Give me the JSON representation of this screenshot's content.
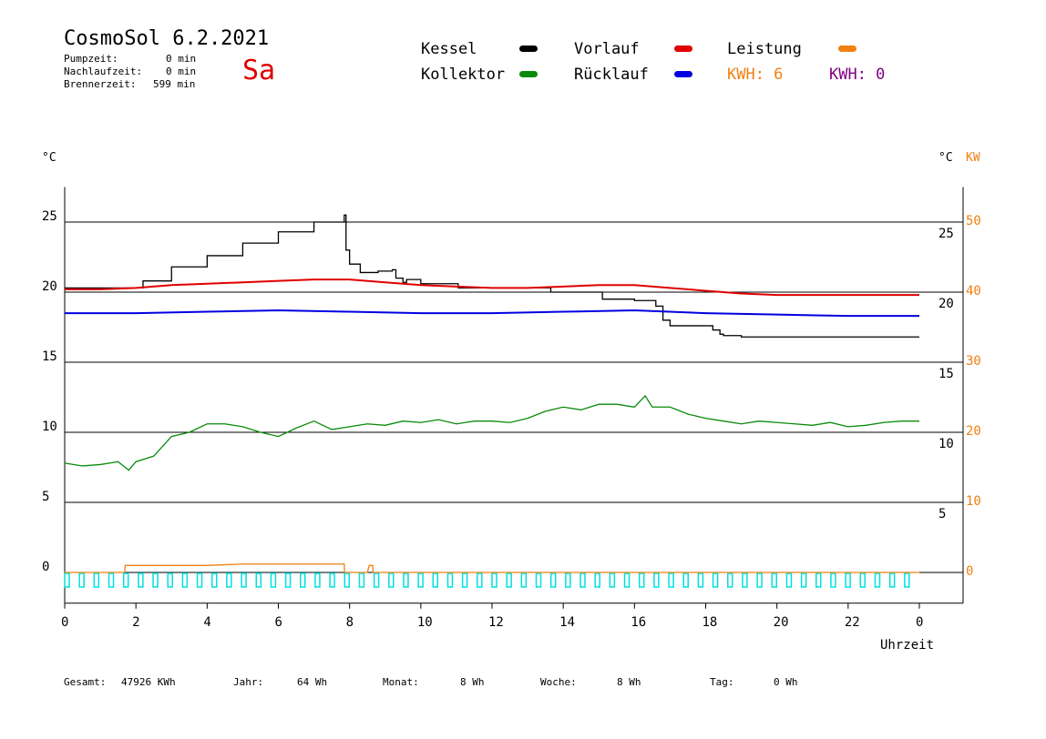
{
  "header": {
    "title": "CosmoSol 6.2.2021",
    "day": "Sa",
    "pumpzeit_label": "Pumpzeit:",
    "pumpzeit_value": "0 min",
    "nachlauf_label": "Nachlaufzeit:",
    "nachlauf_value": "0 min",
    "brenner_label": "Brennerzeit:",
    "brenner_value": "599 min"
  },
  "legend": {
    "kessel": "Kessel",
    "kollektor": "Kollektor",
    "vorlauf": "Vorlauf",
    "ruecklauf": "Rücklauf",
    "leistung": "Leistung",
    "kwh1": "KWH: 6",
    "kwh2": "KWH: 0",
    "colors": {
      "kessel": "#000000",
      "kollektor": "#0a8a0a",
      "vorlauf": "#e00000",
      "ruecklauf": "#0000e0",
      "leistung": "#f08010",
      "kwh2": "#800080",
      "bars": "#00e0e0"
    }
  },
  "footer": {
    "gesamt_label": "Gesamt:",
    "gesamt_value": "47926 KWh",
    "jahr_label": "Jahr:",
    "jahr_value": "64 Wh",
    "monat_label": "Monat:",
    "monat_value": "8 Wh",
    "woche_label": "Woche:",
    "woche_value": "8 Wh",
    "tag_label": "Tag:",
    "tag_value": "0 Wh"
  },
  "chart_data": {
    "type": "line",
    "xlabel": "Uhrzeit",
    "y_left_unit": "°C",
    "y_right_unit": "°C",
    "y_right2_unit": "KW",
    "x_ticks": [
      "0",
      "2",
      "4",
      "6",
      "8",
      "10",
      "12",
      "14",
      "16",
      "18",
      "20",
      "22",
      "0"
    ],
    "y_left_ticks": [
      25,
      20,
      15,
      10,
      5,
      0
    ],
    "y_right_ticks": [
      25,
      20,
      15,
      10,
      5
    ],
    "y_right2_ticks": [
      50,
      40,
      30,
      20,
      10,
      0
    ],
    "xlim": [
      0,
      24
    ],
    "ylim": [
      -2,
      27.5
    ],
    "grid": true,
    "series": [
      {
        "name": "Kessel",
        "color": "#000000",
        "step": true,
        "x": [
          0,
          1.7,
          2.2,
          3,
          4,
          5,
          6,
          7,
          7.85,
          7.9,
          8.0,
          8.3,
          8.8,
          9.2,
          9.3,
          9.5,
          9.6,
          10,
          11,
          11.05,
          13.6,
          13.65,
          15,
          15.1,
          16,
          16.5,
          16.6,
          16.8,
          17,
          18,
          18.2,
          18.4,
          18.5,
          19,
          24
        ],
        "y": [
          20.3,
          20.3,
          20.8,
          21.8,
          22.6,
          23.5,
          24.3,
          25.0,
          25.5,
          23.0,
          22.0,
          21.4,
          21.5,
          21.6,
          21.0,
          20.7,
          20.9,
          20.6,
          20.6,
          20.3,
          20.3,
          20.0,
          20.0,
          19.5,
          19.4,
          19.4,
          19.0,
          18.0,
          17.6,
          17.6,
          17.3,
          17.0,
          16.9,
          16.8,
          16.8
        ]
      },
      {
        "name": "Vorlauf",
        "color": "#e00000",
        "x": [
          0,
          1,
          2,
          3,
          4,
          5,
          6,
          7,
          8,
          9,
          10,
          11,
          12,
          13,
          14,
          15,
          16,
          17,
          18,
          19,
          20,
          21,
          22,
          23,
          24
        ],
        "y": [
          20.2,
          20.2,
          20.3,
          20.5,
          20.6,
          20.7,
          20.8,
          20.9,
          20.9,
          20.7,
          20.5,
          20.4,
          20.3,
          20.3,
          20.4,
          20.5,
          20.5,
          20.3,
          20.1,
          19.9,
          19.8,
          19.8,
          19.8,
          19.8,
          19.8
        ]
      },
      {
        "name": "Rücklauf",
        "color": "#0000e0",
        "x": [
          0,
          2,
          4,
          6,
          8,
          10,
          12,
          14,
          16,
          18,
          20,
          22,
          24
        ],
        "y": [
          18.5,
          18.5,
          18.6,
          18.7,
          18.6,
          18.5,
          18.5,
          18.6,
          18.7,
          18.5,
          18.4,
          18.3,
          18.3
        ]
      },
      {
        "name": "Kollektor",
        "color": "#0a8a0a",
        "x": [
          0,
          0.5,
          1,
          1.5,
          1.8,
          2,
          2.5,
          3,
          3.5,
          4,
          4.5,
          5,
          5.5,
          6,
          6.5,
          7,
          7.5,
          8,
          8.5,
          9,
          9.5,
          10,
          10.5,
          11,
          11.5,
          12,
          12.5,
          13,
          13.5,
          14,
          14.5,
          15,
          15.5,
          16,
          16.3,
          16.5,
          17,
          17.5,
          18,
          18.5,
          19,
          19.5,
          20,
          20.5,
          21,
          21.5,
          22,
          22.5,
          23,
          23.5,
          24
        ],
        "y": [
          7.8,
          7.6,
          7.7,
          7.9,
          7.3,
          7.9,
          8.3,
          9.7,
          10.0,
          10.6,
          10.6,
          10.4,
          10.0,
          9.7,
          10.3,
          10.8,
          10.2,
          10.4,
          10.6,
          10.5,
          10.8,
          10.7,
          10.9,
          10.6,
          10.8,
          10.8,
          10.7,
          11.0,
          11.5,
          11.8,
          11.6,
          12.0,
          12.0,
          11.8,
          12.6,
          11.8,
          11.8,
          11.3,
          11.0,
          10.8,
          10.6,
          10.8,
          10.7,
          10.6,
          10.5,
          10.7,
          10.4,
          10.5,
          10.7,
          10.8,
          10.8
        ]
      },
      {
        "name": "Leistung",
        "color": "#f08010",
        "x": [
          0,
          1.68,
          1.7,
          2.5,
          4,
          5,
          7,
          7.85,
          7.86,
          8.5,
          8.55,
          8.65,
          8.66,
          24
        ],
        "y": [
          0,
          0,
          0.5,
          0.5,
          0.5,
          0.6,
          0.6,
          0.6,
          0,
          0,
          0.5,
          0.5,
          0,
          0
        ]
      }
    ]
  }
}
